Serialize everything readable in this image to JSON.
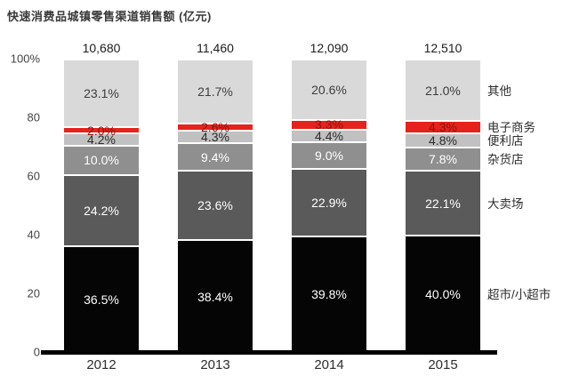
{
  "chart_data": {
    "type": "bar",
    "stacked": true,
    "title": "快速消费品城镇零售渠道销售额 (亿元)",
    "categories": [
      "2012",
      "2013",
      "2014",
      "2015"
    ],
    "totals": [
      "10,680",
      "11,460",
      "12,090",
      "12,510"
    ],
    "series": [
      {
        "name": "超市/小超市",
        "color": "#050505",
        "label_color": "#ffffff",
        "values": [
          36.5,
          38.4,
          39.8,
          40.0
        ]
      },
      {
        "name": "大卖场",
        "color": "#5a5a5a",
        "label_color": "#ffffff",
        "values": [
          24.2,
          23.6,
          22.9,
          22.1
        ]
      },
      {
        "name": "杂货店",
        "color": "#8f8f8f",
        "label_color": "#ffffff",
        "values": [
          10.0,
          9.4,
          9.0,
          7.8
        ]
      },
      {
        "name": "便利店",
        "color": "#c1c1c1",
        "label_color": "#2b2b2b",
        "values": [
          4.2,
          4.3,
          4.4,
          4.8
        ]
      },
      {
        "name": "电子商务",
        "color": "#e5231c",
        "label_color": "#8a120e",
        "values": [
          2.0,
          2.6,
          3.3,
          4.3
        ]
      },
      {
        "name": "其他",
        "color": "#d9d9d9",
        "label_color": "#3d3d3d",
        "values": [
          23.1,
          21.7,
          20.6,
          21.0
        ]
      }
    ],
    "y_axis": {
      "tick_labels": [
        "100%",
        "80",
        "60",
        "40",
        "20",
        "0"
      ],
      "tick_values": [
        100,
        80,
        60,
        40,
        20,
        0
      ]
    },
    "ylim": [
      0,
      100
    ],
    "value_suffix": "%",
    "legend_position": "right",
    "grid": false
  }
}
